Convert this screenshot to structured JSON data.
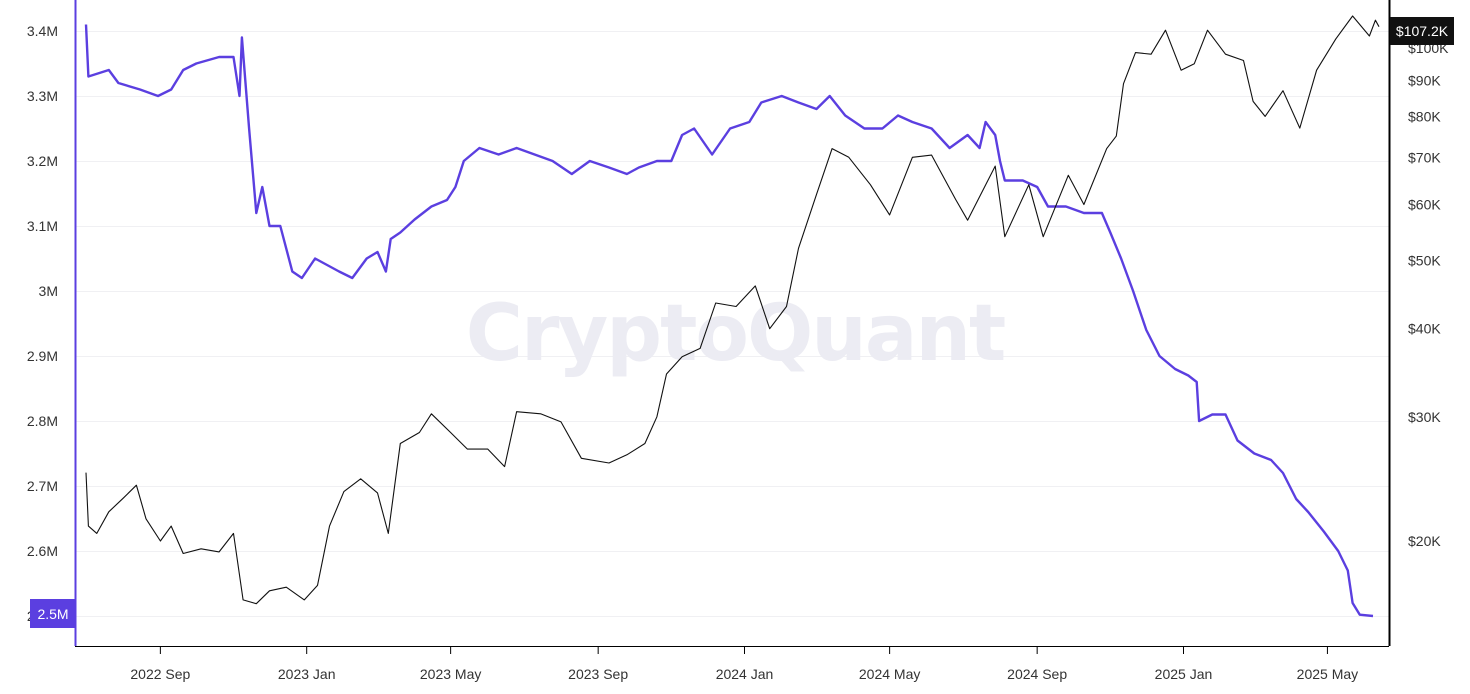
{
  "watermark": "CryptoQuant",
  "badges": {
    "left": "2.5M",
    "right": "$107.2K"
  },
  "colors": {
    "series_left": "#5b3fe0",
    "series_right": "#111111",
    "grid": "#f0f0f3",
    "axis": "#000000",
    "left_axis": "#5b3fe0"
  },
  "chart_data": {
    "type": "line",
    "x_axis": {
      "ticks": [
        "2022 Sep",
        "2023 Jan",
        "2023 May",
        "2023 Sep",
        "2024 Jan",
        "2024 May",
        "2024 Sep",
        "2025 Jan",
        "2025 May"
      ]
    },
    "y_left": {
      "ticks": [
        "2.5M",
        "2.6M",
        "2.7M",
        "2.8M",
        "2.9M",
        "3M",
        "3.1M",
        "3.2M",
        "3.3M",
        "3.4M"
      ],
      "values": [
        2500000,
        2600000,
        2700000,
        2800000,
        2900000,
        3000000,
        3100000,
        3200000,
        3300000,
        3400000
      ],
      "range": [
        2500000,
        3400000
      ]
    },
    "y_right": {
      "scale": "log",
      "ticks": [
        "$20K",
        "$30K",
        "$40K",
        "$50K",
        "$60K",
        "$70K",
        "$80K",
        "$90K",
        "$100K"
      ],
      "values": [
        20000,
        30000,
        40000,
        50000,
        60000,
        70000,
        80000,
        90000,
        100000
      ]
    },
    "series": [
      {
        "axis": "left",
        "color": "#5b3fe0",
        "points": [
          [
            "2022-07-01",
            3410000
          ],
          [
            "2022-07-03",
            3330000
          ],
          [
            "2022-07-20",
            3340000
          ],
          [
            "2022-07-28",
            3320000
          ],
          [
            "2022-08-15",
            3310000
          ],
          [
            "2022-08-30",
            3300000
          ],
          [
            "2022-09-10",
            3310000
          ],
          [
            "2022-09-20",
            3340000
          ],
          [
            "2022-10-01",
            3350000
          ],
          [
            "2022-10-20",
            3360000
          ],
          [
            "2022-11-01",
            3360000
          ],
          [
            "2022-11-06",
            3300000
          ],
          [
            "2022-11-08",
            3390000
          ],
          [
            "2022-11-14",
            3250000
          ],
          [
            "2022-11-20",
            3120000
          ],
          [
            "2022-11-25",
            3160000
          ],
          [
            "2022-12-01",
            3100000
          ],
          [
            "2022-12-10",
            3100000
          ],
          [
            "2022-12-20",
            3030000
          ],
          [
            "2022-12-28",
            3020000
          ],
          [
            "2023-01-08",
            3050000
          ],
          [
            "2023-01-18",
            3040000
          ],
          [
            "2023-01-28",
            3030000
          ],
          [
            "2023-02-08",
            3020000
          ],
          [
            "2023-02-20",
            3050000
          ],
          [
            "2023-03-01",
            3060000
          ],
          [
            "2023-03-08",
            3030000
          ],
          [
            "2023-03-12",
            3080000
          ],
          [
            "2023-03-20",
            3090000
          ],
          [
            "2023-04-01",
            3110000
          ],
          [
            "2023-04-15",
            3130000
          ],
          [
            "2023-04-28",
            3140000
          ],
          [
            "2023-05-05",
            3160000
          ],
          [
            "2023-05-12",
            3200000
          ],
          [
            "2023-05-25",
            3220000
          ],
          [
            "2023-06-10",
            3210000
          ],
          [
            "2023-06-25",
            3220000
          ],
          [
            "2023-07-10",
            3210000
          ],
          [
            "2023-07-25",
            3200000
          ],
          [
            "2023-08-10",
            3180000
          ],
          [
            "2023-08-25",
            3200000
          ],
          [
            "2023-09-10",
            3190000
          ],
          [
            "2023-09-25",
            3180000
          ],
          [
            "2023-10-05",
            3190000
          ],
          [
            "2023-10-20",
            3200000
          ],
          [
            "2023-11-01",
            3200000
          ],
          [
            "2023-11-10",
            3240000
          ],
          [
            "2023-11-20",
            3250000
          ],
          [
            "2023-12-05",
            3210000
          ],
          [
            "2023-12-20",
            3250000
          ],
          [
            "2024-01-05",
            3260000
          ],
          [
            "2024-01-15",
            3290000
          ],
          [
            "2024-02-01",
            3300000
          ],
          [
            "2024-02-15",
            3290000
          ],
          [
            "2024-03-01",
            3280000
          ],
          [
            "2024-03-12",
            3300000
          ],
          [
            "2024-03-25",
            3270000
          ],
          [
            "2024-04-10",
            3250000
          ],
          [
            "2024-04-25",
            3250000
          ],
          [
            "2024-05-08",
            3270000
          ],
          [
            "2024-05-20",
            3260000
          ],
          [
            "2024-06-05",
            3250000
          ],
          [
            "2024-06-20",
            3220000
          ],
          [
            "2024-07-05",
            3240000
          ],
          [
            "2024-07-15",
            3220000
          ],
          [
            "2024-07-20",
            3260000
          ],
          [
            "2024-07-28",
            3240000
          ],
          [
            "2024-08-01",
            3200000
          ],
          [
            "2024-08-05",
            3170000
          ],
          [
            "2024-08-20",
            3170000
          ],
          [
            "2024-09-01",
            3160000
          ],
          [
            "2024-09-10",
            3130000
          ],
          [
            "2024-09-25",
            3130000
          ],
          [
            "2024-10-10",
            3120000
          ],
          [
            "2024-10-25",
            3120000
          ],
          [
            "2024-11-01",
            3090000
          ],
          [
            "2024-11-10",
            3050000
          ],
          [
            "2024-11-20",
            3000000
          ],
          [
            "2024-12-01",
            2940000
          ],
          [
            "2024-12-12",
            2900000
          ],
          [
            "2024-12-25",
            2880000
          ],
          [
            "2025-01-05",
            2870000
          ],
          [
            "2025-01-12",
            2860000
          ],
          [
            "2025-01-14",
            2800000
          ],
          [
            "2025-01-25",
            2810000
          ],
          [
            "2025-02-05",
            2810000
          ],
          [
            "2025-02-15",
            2770000
          ],
          [
            "2025-03-01",
            2750000
          ],
          [
            "2025-03-15",
            2740000
          ],
          [
            "2025-03-25",
            2720000
          ],
          [
            "2025-04-05",
            2680000
          ],
          [
            "2025-04-15",
            2660000
          ],
          [
            "2025-04-28",
            2630000
          ],
          [
            "2025-05-10",
            2600000
          ],
          [
            "2025-05-18",
            2570000
          ],
          [
            "2025-05-22",
            2520000
          ],
          [
            "2025-05-28",
            2502000
          ],
          [
            "2025-06-08",
            2500000
          ]
        ]
      },
      {
        "axis": "right",
        "color": "#111111",
        "points": [
          [
            "2022-07-01",
            25000
          ],
          [
            "2022-07-03",
            21000
          ],
          [
            "2022-07-10",
            20500
          ],
          [
            "2022-07-20",
            22000
          ],
          [
            "2022-08-01",
            23000
          ],
          [
            "2022-08-12",
            24000
          ],
          [
            "2022-08-20",
            21500
          ],
          [
            "2022-09-01",
            20000
          ],
          [
            "2022-09-10",
            21000
          ],
          [
            "2022-09-20",
            19200
          ],
          [
            "2022-10-05",
            19500
          ],
          [
            "2022-10-20",
            19300
          ],
          [
            "2022-11-01",
            20500
          ],
          [
            "2022-11-09",
            16500
          ],
          [
            "2022-11-20",
            16300
          ],
          [
            "2022-12-01",
            17000
          ],
          [
            "2022-12-15",
            17200
          ],
          [
            "2022-12-30",
            16500
          ],
          [
            "2023-01-10",
            17300
          ],
          [
            "2023-01-20",
            21000
          ],
          [
            "2023-02-01",
            23500
          ],
          [
            "2023-02-15",
            24500
          ],
          [
            "2023-03-01",
            23400
          ],
          [
            "2023-03-10",
            20500
          ],
          [
            "2023-03-20",
            27500
          ],
          [
            "2023-04-05",
            28500
          ],
          [
            "2023-04-15",
            30300
          ],
          [
            "2023-05-01",
            28500
          ],
          [
            "2023-05-15",
            27000
          ],
          [
            "2023-06-01",
            27000
          ],
          [
            "2023-06-15",
            25500
          ],
          [
            "2023-06-25",
            30500
          ],
          [
            "2023-07-15",
            30300
          ],
          [
            "2023-08-01",
            29500
          ],
          [
            "2023-08-18",
            26200
          ],
          [
            "2023-09-10",
            25800
          ],
          [
            "2023-09-25",
            26500
          ],
          [
            "2023-10-10",
            27500
          ],
          [
            "2023-10-20",
            30000
          ],
          [
            "2023-10-28",
            34500
          ],
          [
            "2023-11-10",
            36500
          ],
          [
            "2023-11-25",
            37500
          ],
          [
            "2023-12-08",
            43500
          ],
          [
            "2023-12-25",
            43000
          ],
          [
            "2024-01-10",
            46000
          ],
          [
            "2024-01-22",
            40000
          ],
          [
            "2024-02-05",
            43000
          ],
          [
            "2024-02-15",
            52000
          ],
          [
            "2024-03-01",
            62000
          ],
          [
            "2024-03-14",
            72000
          ],
          [
            "2024-03-28",
            70000
          ],
          [
            "2024-04-15",
            64000
          ],
          [
            "2024-05-01",
            58000
          ],
          [
            "2024-05-20",
            70000
          ],
          [
            "2024-06-05",
            70500
          ],
          [
            "2024-06-25",
            61000
          ],
          [
            "2024-07-05",
            57000
          ],
          [
            "2024-07-28",
            68000
          ],
          [
            "2024-08-05",
            54000
          ],
          [
            "2024-08-25",
            64000
          ],
          [
            "2024-09-06",
            54000
          ],
          [
            "2024-09-27",
            66000
          ],
          [
            "2024-10-10",
            60000
          ],
          [
            "2024-10-29",
            72000
          ],
          [
            "2024-11-06",
            75000
          ],
          [
            "2024-11-12",
            89000
          ],
          [
            "2024-11-22",
            98500
          ],
          [
            "2024-12-05",
            98000
          ],
          [
            "2024-12-17",
            106000
          ],
          [
            "2024-12-30",
            93000
          ],
          [
            "2025-01-10",
            95000
          ],
          [
            "2025-01-21",
            106000
          ],
          [
            "2025-02-05",
            98000
          ],
          [
            "2025-02-20",
            96000
          ],
          [
            "2025-02-28",
            84000
          ],
          [
            "2025-03-10",
            80000
          ],
          [
            "2025-03-25",
            87000
          ],
          [
            "2025-04-08",
            77000
          ],
          [
            "2025-04-22",
            93000
          ],
          [
            "2025-05-08",
            103000
          ],
          [
            "2025-05-22",
            111000
          ],
          [
            "2025-06-05",
            104000
          ],
          [
            "2025-06-10",
            109500
          ],
          [
            "2025-06-13",
            107200
          ]
        ]
      }
    ]
  }
}
